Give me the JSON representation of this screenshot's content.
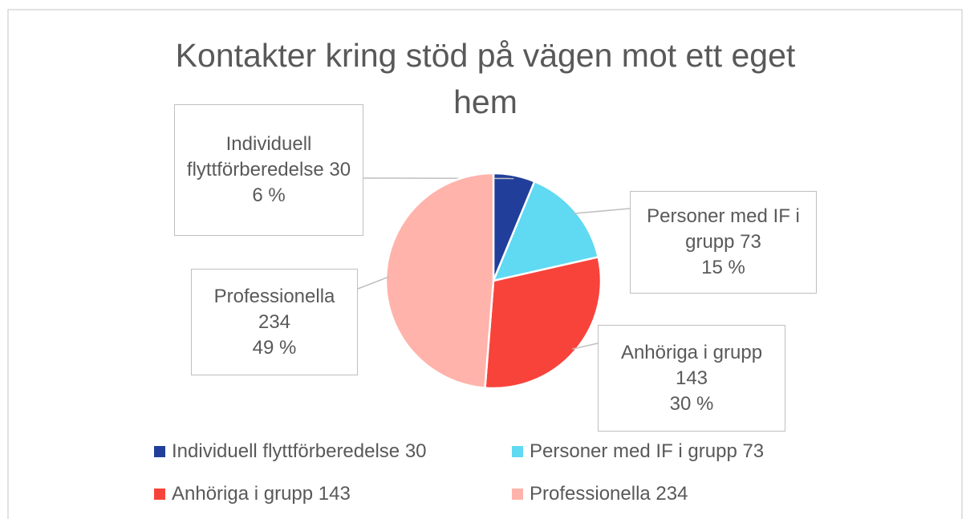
{
  "chart_data": {
    "type": "pie",
    "title": "Kontakter kring stöd på vägen mot ett eget hem",
    "categories": [
      "Individuell flyttförberedelse 30",
      "Personer med IF i grupp 73",
      "Anhöriga i grupp 143",
      "Professionella 234"
    ],
    "label_names": [
      "Individuell flyttförberedelse",
      "Personer med IF i grupp",
      "Anhöriga i grupp",
      "Professionella"
    ],
    "values": [
      30,
      73,
      143,
      234
    ],
    "percent_labels": [
      "6 %",
      "15 %",
      "30 %",
      "49 %"
    ],
    "colors": [
      "#213f9a",
      "#60d9f2",
      "#f8433b",
      "#ffb3ab"
    ],
    "legend": "bottom"
  }
}
